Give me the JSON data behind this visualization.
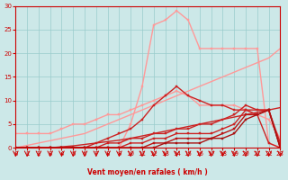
{
  "background_color": "#cce8e8",
  "grid_color": "#99cccc",
  "xlabel": "Vent moyen/en rafales ( km/h )",
  "xlim": [
    0,
    23
  ],
  "ylim": [
    0,
    30
  ],
  "xticks": [
    0,
    1,
    2,
    3,
    4,
    5,
    6,
    7,
    8,
    9,
    10,
    11,
    12,
    13,
    14,
    15,
    16,
    17,
    18,
    19,
    20,
    21,
    22,
    23
  ],
  "yticks": [
    0,
    5,
    10,
    15,
    20,
    25,
    30
  ],
  "lines": [
    {
      "x": [
        0,
        1,
        2,
        3,
        4,
        5,
        6,
        7,
        8,
        9,
        10,
        11,
        12,
        13,
        14,
        15,
        16,
        17,
        18,
        19,
        20,
        21,
        22,
        23
      ],
      "y": [
        0,
        0,
        0,
        0,
        0,
        0,
        0,
        0,
        0,
        0,
        5,
        13,
        26,
        27,
        29,
        27,
        21,
        21,
        21,
        21,
        21,
        21,
        1,
        0
      ],
      "color": "#ff9999",
      "marker": "s",
      "markersize": 2,
      "linewidth": 1.0
    },
    {
      "x": [
        0,
        1,
        2,
        3,
        4,
        5,
        6,
        7,
        8,
        9,
        10,
        11,
        12,
        13,
        14,
        15,
        16,
        17,
        18,
        19,
        20,
        21,
        22,
        23
      ],
      "y": [
        0,
        0.5,
        1,
        1.5,
        2,
        2.5,
        3,
        4,
        5,
        6,
        7,
        8,
        9,
        10,
        11,
        12,
        13,
        14,
        15,
        16,
        17,
        18,
        19,
        21
      ],
      "color": "#ff9999",
      "marker": null,
      "markersize": 0,
      "linewidth": 1.0,
      "linestyle": "-"
    },
    {
      "x": [
        0,
        1,
        2,
        3,
        4,
        5,
        6,
        7,
        8,
        9,
        10,
        11,
        12,
        13,
        14,
        15,
        16,
        17,
        18,
        19,
        20,
        21,
        22,
        23
      ],
      "y": [
        3,
        3,
        3,
        3,
        4,
        5,
        5,
        6,
        7,
        7,
        8,
        9,
        10,
        11,
        12,
        11,
        9,
        9,
        9,
        9,
        8,
        7,
        6,
        2
      ],
      "color": "#ff9999",
      "marker": "s",
      "markersize": 2,
      "linewidth": 1.0
    },
    {
      "x": [
        0,
        1,
        2,
        3,
        4,
        5,
        6,
        7,
        8,
        9,
        10,
        11,
        12,
        13,
        14,
        15,
        16,
        17,
        18,
        19,
        20,
        21,
        22,
        23
      ],
      "y": [
        0,
        0,
        0,
        0,
        0,
        0,
        0,
        1,
        2,
        3,
        4,
        6,
        9,
        11,
        13,
        11,
        10,
        9,
        9,
        8,
        8,
        7,
        1,
        0
      ],
      "color": "#cc2222",
      "marker": "s",
      "markersize": 2,
      "linewidth": 1.0
    },
    {
      "x": [
        0,
        1,
        2,
        3,
        4,
        5,
        6,
        7,
        8,
        9,
        10,
        11,
        12,
        13,
        14,
        15,
        16,
        17,
        18,
        19,
        20,
        21,
        22,
        23
      ],
      "y": [
        0,
        0,
        0,
        0,
        0.2,
        0.4,
        0.7,
        1,
        1.3,
        1.6,
        2,
        2.5,
        3,
        3.5,
        4,
        4.5,
        5,
        5.5,
        6,
        6.5,
        7,
        7.5,
        8,
        8.5
      ],
      "color": "#cc2222",
      "marker": null,
      "markersize": 0,
      "linewidth": 1.0,
      "linestyle": "-"
    },
    {
      "x": [
        0,
        1,
        2,
        3,
        4,
        5,
        6,
        7,
        8,
        9,
        10,
        11,
        12,
        13,
        14,
        15,
        16,
        17,
        18,
        19,
        20,
        21,
        22,
        23
      ],
      "y": [
        0,
        0,
        0,
        0,
        0,
        0,
        0,
        0,
        1,
        1,
        2,
        2,
        3,
        3,
        4,
        4,
        5,
        5,
        6,
        7,
        9,
        8,
        8,
        0
      ],
      "color": "#cc2222",
      "marker": "s",
      "markersize": 2,
      "linewidth": 1.0
    },
    {
      "x": [
        0,
        1,
        2,
        3,
        4,
        5,
        6,
        7,
        8,
        9,
        10,
        11,
        12,
        13,
        14,
        15,
        16,
        17,
        18,
        19,
        20,
        21,
        22,
        23
      ],
      "y": [
        0,
        0,
        0,
        0,
        0,
        0,
        0,
        0,
        0,
        0,
        1,
        1,
        2,
        2,
        3,
        3,
        3,
        3,
        4,
        5,
        8,
        8,
        8,
        1
      ],
      "color": "#cc2222",
      "marker": "s",
      "markersize": 2,
      "linewidth": 1.0
    },
    {
      "x": [
        0,
        1,
        2,
        3,
        4,
        5,
        6,
        7,
        8,
        9,
        10,
        11,
        12,
        13,
        14,
        15,
        16,
        17,
        18,
        19,
        20,
        21,
        22,
        23
      ],
      "y": [
        0,
        0,
        0,
        0,
        0,
        0,
        0,
        0,
        0,
        0,
        0,
        0,
        1,
        1,
        2,
        2,
        2,
        2,
        3,
        4,
        7,
        7,
        8,
        0
      ],
      "color": "#bb1111",
      "marker": "s",
      "markersize": 2,
      "linewidth": 1.0
    },
    {
      "x": [
        0,
        1,
        2,
        3,
        4,
        5,
        6,
        7,
        8,
        9,
        10,
        11,
        12,
        13,
        14,
        15,
        16,
        17,
        18,
        19,
        20,
        21,
        22,
        23
      ],
      "y": [
        0,
        0,
        0,
        0,
        0,
        0,
        0,
        0,
        0,
        0,
        0,
        0,
        0,
        1,
        1,
        1,
        1,
        2,
        2,
        3,
        6,
        7,
        8,
        0
      ],
      "color": "#aa1111",
      "marker": "s",
      "markersize": 2,
      "linewidth": 1.0
    }
  ],
  "arrow_color": "#cc0000",
  "tick_color": "#cc0000",
  "spine_color": "#cc0000",
  "xlabel_fontsize": 5.5,
  "tick_fontsize": 5
}
